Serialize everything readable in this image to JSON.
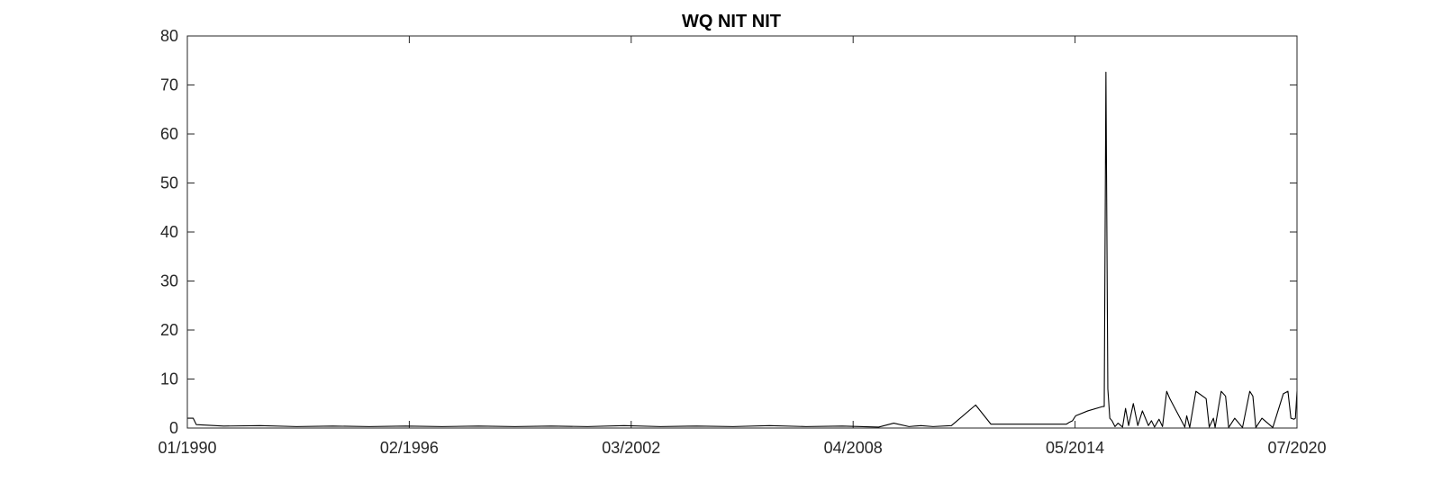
{
  "chart_data": {
    "type": "line",
    "title": "WQ NIT NIT",
    "xlabel": "",
    "ylabel": "",
    "xlim": [
      "1990-01-01",
      "2020-07-01"
    ],
    "ylim": [
      0,
      80
    ],
    "xticks": [
      "01/1990",
      "02/1996",
      "03/2002",
      "04/2008",
      "05/2014",
      "07/2020"
    ],
    "yticks": [
      0,
      10,
      20,
      30,
      40,
      50,
      60,
      70,
      80
    ],
    "grid": false,
    "line_color": "#000000",
    "series": [
      {
        "x": [
          "1990-01-01",
          "1990-03-01",
          "1990-04-01",
          "1991-01-01",
          "1992-01-01",
          "1993-01-01",
          "1994-01-01",
          "1995-01-01",
          "1996-01-01",
          "1997-01-01",
          "1998-01-01",
          "1999-01-01",
          "2000-01-01",
          "2001-01-01",
          "2002-01-01",
          "2003-01-01",
          "2004-01-01",
          "2005-01-01",
          "2006-01-01",
          "2007-01-01",
          "2008-01-01",
          "2009-01-01",
          "2009-06-01",
          "2009-11-01",
          "2010-03-01",
          "2010-07-01",
          "2011-01-01",
          "2011-09-01",
          "2012-02-01",
          "2013-06-01",
          "2014-03-01",
          "2014-04-01",
          "2014-05-01",
          "2014-06-01",
          "2014-10-01",
          "2015-03-01",
          "2015-03-15",
          "2015-04-01",
          "2015-04-20",
          "2015-05-10",
          "2015-06-01",
          "2015-07-01",
          "2015-08-01",
          "2015-09-15",
          "2015-10-15",
          "2015-11-15",
          "2016-01-01",
          "2016-02-15",
          "2016-04-01",
          "2016-06-01",
          "2016-07-01",
          "2016-08-01",
          "2016-09-15",
          "2016-10-20",
          "2016-12-01",
          "2017-01-01",
          "2017-06-01",
          "2017-06-20",
          "2017-07-20",
          "2017-09-20",
          "2018-01-01",
          "2018-02-01",
          "2018-03-15",
          "2018-04-01",
          "2018-06-01",
          "2018-07-15",
          "2018-08-15",
          "2018-10-15",
          "2019-01-01",
          "2019-03-15",
          "2019-04-15",
          "2019-05-15",
          "2019-07-15",
          "2019-11-01",
          "2020-02-15",
          "2020-04-01",
          "2020-05-01",
          "2020-06-01",
          "2020-06-15",
          "2020-07-01"
        ],
        "y": [
          2.0,
          2.0,
          0.7,
          0.4,
          0.5,
          0.3,
          0.4,
          0.3,
          0.4,
          0.3,
          0.4,
          0.3,
          0.4,
          0.3,
          0.5,
          0.3,
          0.4,
          0.3,
          0.5,
          0.3,
          0.4,
          0.2,
          1.0,
          0.3,
          0.5,
          0.3,
          0.5,
          4.7,
          0.8,
          0.8,
          0.8,
          1.2,
          1.5,
          2.5,
          3.5,
          4.4,
          4.4,
          72.6,
          8.0,
          2.0,
          1.5,
          0.3,
          1.0,
          0.2,
          4.0,
          0.5,
          5.0,
          0.5,
          3.5,
          0.5,
          1.5,
          0.2,
          1.8,
          0.3,
          7.5,
          6.0,
          0.2,
          2.5,
          0.1,
          7.5,
          6.0,
          0.2,
          2.0,
          0.1,
          7.5,
          6.5,
          0.1,
          2.0,
          0.1,
          7.5,
          6.5,
          0.1,
          2.0,
          0.1,
          7.0,
          7.5,
          2.0,
          1.8,
          2.0,
          7.5
        ]
      }
    ]
  }
}
